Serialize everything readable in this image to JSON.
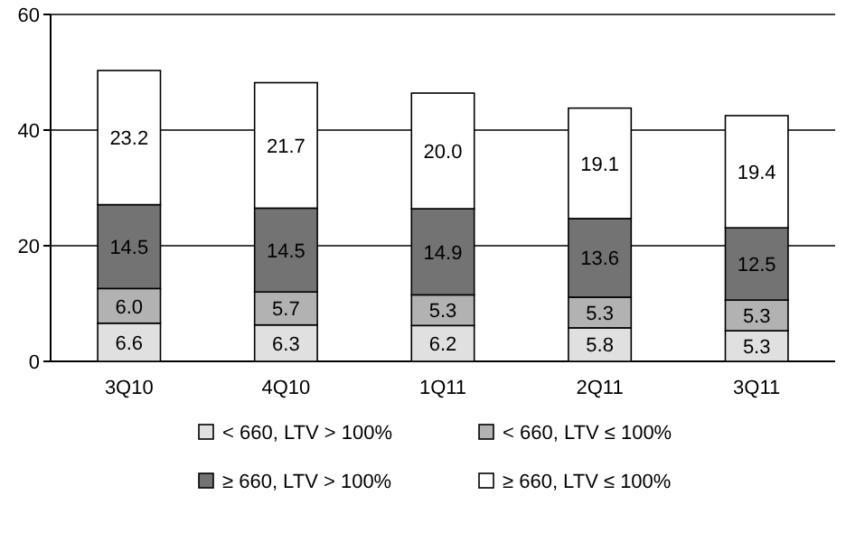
{
  "chart_data": {
    "type": "bar",
    "stacked": true,
    "categories": [
      "3Q10",
      "4Q10",
      "1Q11",
      "2Q11",
      "3Q11"
    ],
    "series": [
      {
        "name": "< 660, LTV > 100%",
        "color": "#e0e0e0",
        "values": [
          6.6,
          6.3,
          6.2,
          5.8,
          5.3
        ],
        "value_labels": [
          "6.6",
          "6.3",
          "6.2",
          "5.8",
          "5.3"
        ]
      },
      {
        "name": "< 660, LTV ≤ 100%",
        "color": "#b2b2b2",
        "values": [
          6.0,
          5.7,
          5.3,
          5.3,
          5.3
        ],
        "value_labels": [
          "6.0",
          "5.7",
          "5.3",
          "5.3",
          "5.3"
        ]
      },
      {
        "name": "≥ 660, LTV > 100%",
        "color": "#737373",
        "values": [
          14.5,
          14.5,
          14.9,
          13.6,
          12.5
        ],
        "value_labels": [
          "14.5",
          "14.5",
          "14.9",
          "13.6",
          "12.5"
        ]
      },
      {
        "name": "≥ 660, LTV ≤ 100%",
        "color": "#ffffff",
        "values": [
          23.2,
          21.7,
          20.0,
          19.1,
          19.4
        ],
        "value_labels": [
          "23.2",
          "21.7",
          "20.0",
          "19.1",
          "19.4"
        ]
      }
    ],
    "ylim": [
      0,
      60
    ],
    "yticks": [
      0,
      20,
      40,
      60
    ],
    "grid": "y",
    "legend": "bottom"
  }
}
